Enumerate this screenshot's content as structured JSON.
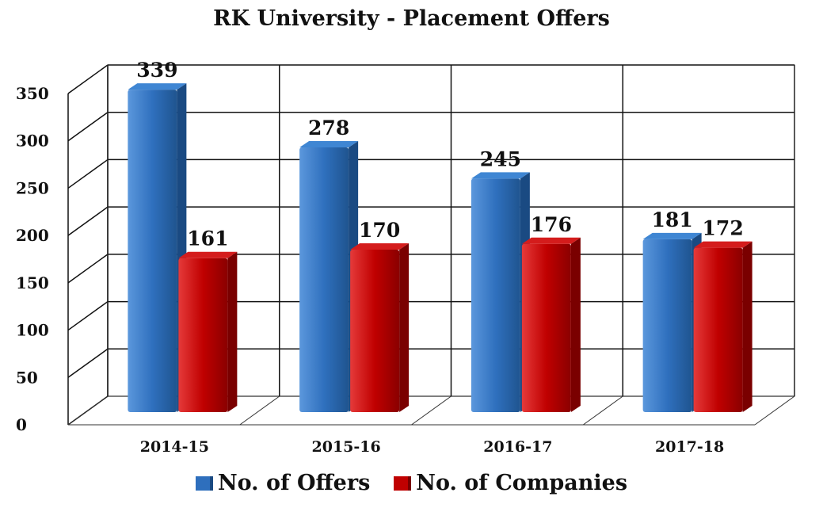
{
  "chart_data": {
    "type": "bar",
    "title": "RK University - Placement Offers",
    "categories": [
      "2014-15",
      "2015-16",
      "2016-17",
      "2017-18"
    ],
    "series": [
      {
        "name": "No. of Offers",
        "values": [
          339,
          278,
          245,
          181
        ],
        "color": "#2e6fbd"
      },
      {
        "name": "No. of Companies",
        "values": [
          161,
          170,
          176,
          172
        ],
        "color": "#c00000"
      }
    ],
    "yticks": [
      "0",
      "50",
      "100",
      "150",
      "200",
      "250",
      "300",
      "350"
    ],
    "ylim": [
      0,
      350
    ],
    "grid": true,
    "legend": "bottom"
  }
}
